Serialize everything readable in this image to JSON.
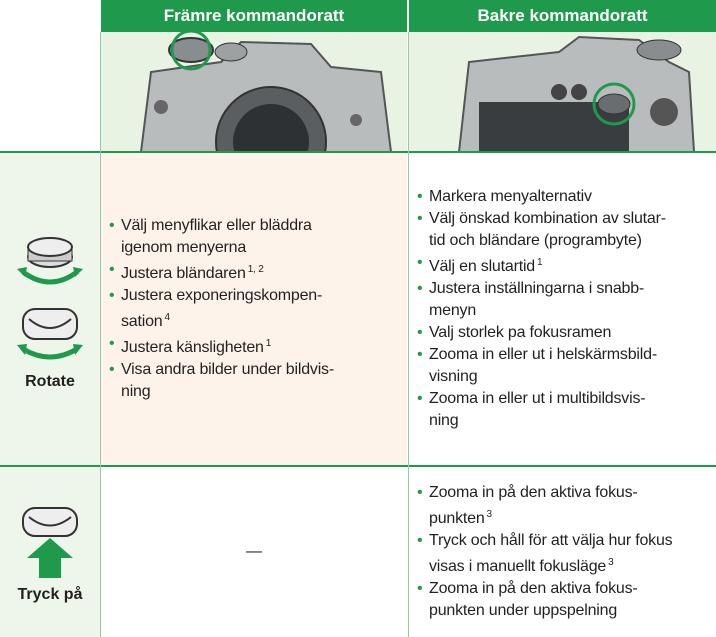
{
  "header": {
    "columns": [
      "Främre kommandoratt",
      "Bakre kommandoratt"
    ]
  },
  "rows": [
    {
      "label": "Rotate",
      "front": [
        {
          "lines": [
            "Välj menyflikar eller bläddra",
            "igenom menyerna"
          ]
        },
        {
          "lines": [
            "Justera bländaren"
          ],
          "sup": "1, 2"
        },
        {
          "lines": [
            "Justera exponeringskompen-",
            "sation"
          ],
          "sup": "4"
        },
        {
          "lines": [
            "Justera känsligheten"
          ],
          "sup": "1"
        },
        {
          "lines": [
            "Visa andra bilder under bildvis-",
            "ning"
          ]
        }
      ],
      "rear": [
        {
          "lines": [
            "Markera menyalternativ"
          ]
        },
        {
          "lines": [
            "Välj önskad kombination av slutar-",
            "tid och bländare (programbyte)"
          ]
        },
        {
          "lines": [
            "Välj en slutartid"
          ],
          "sup": "1"
        },
        {
          "lines": [
            "Justera inställningarna i snabb-",
            "menyn"
          ]
        },
        {
          "lines": [
            "Valj storlek pa fokusramen"
          ]
        },
        {
          "lines": [
            "Zooma in eller ut i helskärmsbild-",
            "visning"
          ]
        },
        {
          "lines": [
            "Zooma in eller ut i multibildsvis-",
            "ning"
          ]
        }
      ]
    },
    {
      "label": "Tryck på",
      "front": "—",
      "rear": [
        {
          "lines": [
            "Zooma in på den aktiva fokus-",
            "punkten"
          ],
          "sup": "3"
        },
        {
          "lines": [
            "Tryck och håll för att välja hur fokus",
            "visas i manuellt fokusläge"
          ],
          "sup": "3"
        },
        {
          "lines": [
            "Zooma in på den aktiva fokus-",
            "punkten under uppspelning"
          ]
        }
      ]
    }
  ]
}
